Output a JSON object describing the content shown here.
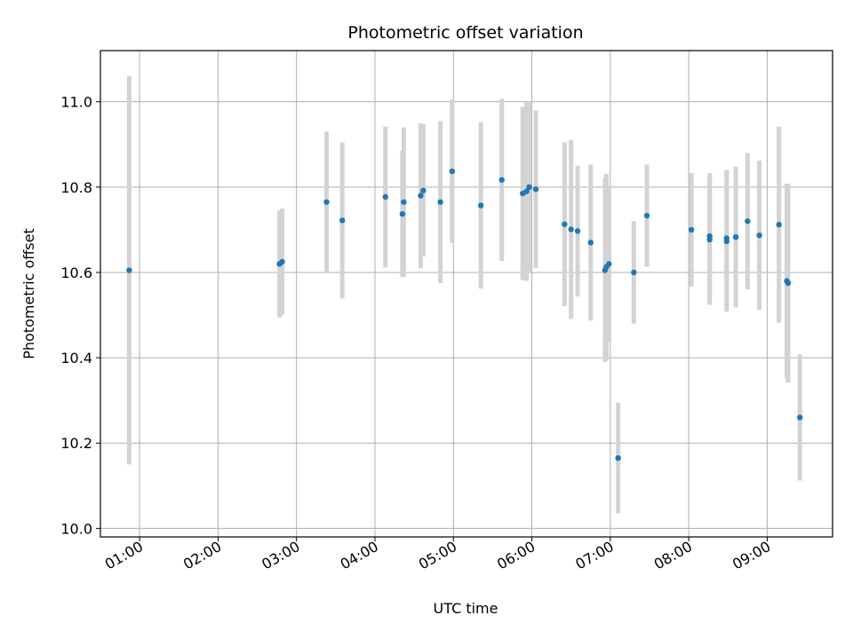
{
  "chart_data": {
    "type": "scatter",
    "title": "Photometric offset variation",
    "xlabel": "UTC time",
    "ylabel": "Photometric offset",
    "xlim": [
      "00:30",
      "09:50"
    ],
    "ylim": [
      9.98,
      11.12
    ],
    "x_ticks": [
      "01:00",
      "02:00",
      "03:00",
      "04:00",
      "05:00",
      "06:00",
      "07:00",
      "08:00",
      "09:00"
    ],
    "y_ticks": [
      "10.0",
      "10.2",
      "10.4",
      "10.6",
      "10.8",
      "11.0"
    ],
    "grid": true,
    "colors": {
      "point": "#1f77b4",
      "errorbar": "#d3d3d3",
      "grid": "#b0b0b0"
    },
    "series": [
      {
        "points": [
          {
            "x": "00:52",
            "y": 10.605,
            "err": 0.455
          },
          {
            "x": "02:47",
            "y": 10.62,
            "err": 0.125
          },
          {
            "x": "02:49",
            "y": 10.625,
            "err": 0.125
          },
          {
            "x": "03:23",
            "y": 10.765,
            "err": 0.165
          },
          {
            "x": "03:35",
            "y": 10.722,
            "err": 0.183
          },
          {
            "x": "04:08",
            "y": 10.777,
            "err": 0.165
          },
          {
            "x": "04:21",
            "y": 10.737,
            "err": 0.148
          },
          {
            "x": "04:22",
            "y": 10.765,
            "err": 0.175
          },
          {
            "x": "04:35",
            "y": 10.78,
            "err": 0.17
          },
          {
            "x": "04:37",
            "y": 10.792,
            "err": 0.155
          },
          {
            "x": "04:50",
            "y": 10.765,
            "err": 0.19
          },
          {
            "x": "04:59",
            "y": 10.837,
            "err": 0.168
          },
          {
            "x": "05:21",
            "y": 10.757,
            "err": 0.195
          },
          {
            "x": "05:37",
            "y": 10.817,
            "err": 0.19
          },
          {
            "x": "05:53",
            "y": 10.785,
            "err": 0.203
          },
          {
            "x": "05:56",
            "y": 10.79,
            "err": 0.21
          },
          {
            "x": "05:58",
            "y": 10.8,
            "err": 0.2
          },
          {
            "x": "06:03",
            "y": 10.795,
            "err": 0.185
          },
          {
            "x": "06:25",
            "y": 10.713,
            "err": 0.192
          },
          {
            "x": "06:30",
            "y": 10.701,
            "err": 0.21
          },
          {
            "x": "06:35",
            "y": 10.697,
            "err": 0.153
          },
          {
            "x": "06:45",
            "y": 10.67,
            "err": 0.183
          },
          {
            "x": "06:56",
            "y": 10.605,
            "err": 0.215
          },
          {
            "x": "06:57",
            "y": 10.613,
            "err": 0.218
          },
          {
            "x": "06:59",
            "y": 10.62,
            "err": 0.183
          },
          {
            "x": "07:06",
            "y": 10.165,
            "err": 0.13
          },
          {
            "x": "07:18",
            "y": 10.6,
            "err": 0.12
          },
          {
            "x": "07:28",
            "y": 10.733,
            "err": 0.12
          },
          {
            "x": "08:02",
            "y": 10.7,
            "err": 0.133
          },
          {
            "x": "08:16",
            "y": 10.677,
            "err": 0.153
          },
          {
            "x": "08:16",
            "y": 10.685,
            "err": 0.148
          },
          {
            "x": "08:29",
            "y": 10.673,
            "err": 0.165
          },
          {
            "x": "08:29",
            "y": 10.68,
            "err": 0.16
          },
          {
            "x": "08:36",
            "y": 10.683,
            "err": 0.165
          },
          {
            "x": "08:45",
            "y": 10.72,
            "err": 0.16
          },
          {
            "x": "08:54",
            "y": 10.687,
            "err": 0.175
          },
          {
            "x": "09:09",
            "y": 10.712,
            "err": 0.23
          },
          {
            "x": "09:15",
            "y": 10.58,
            "err": 0.228
          },
          {
            "x": "09:16",
            "y": 10.575,
            "err": 0.233
          },
          {
            "x": "09:25",
            "y": 10.26,
            "err": 0.148
          }
        ]
      }
    ]
  }
}
